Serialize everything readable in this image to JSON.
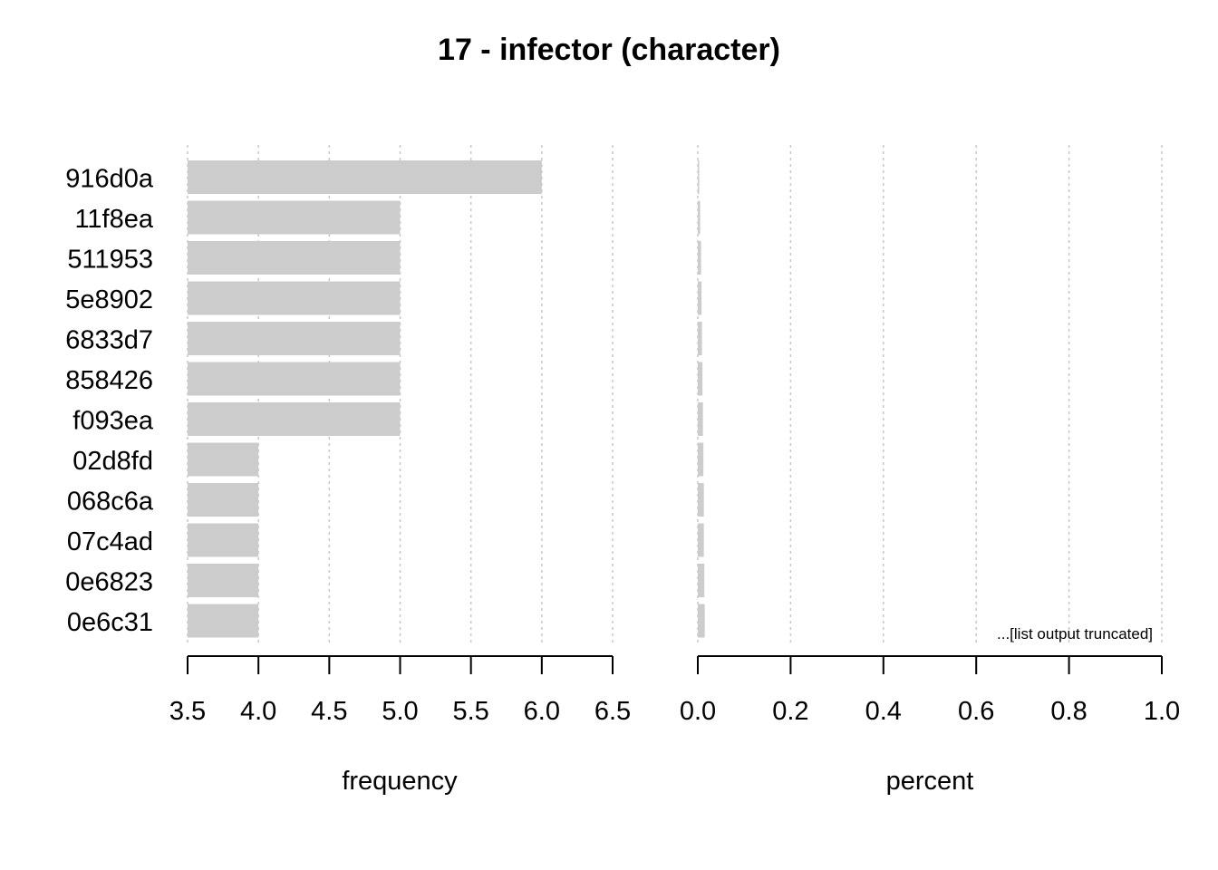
{
  "title": "17 - infector (character)",
  "note": "...[list output truncated]",
  "colors": {
    "bar": "#cccccc",
    "grid": "#c8c8c8",
    "axis": "#000000",
    "text": "#000000"
  },
  "chart_data": [
    {
      "type": "bar",
      "orientation": "horizontal",
      "xlabel": "frequency",
      "xlim": [
        3.5,
        6.5
      ],
      "xticks": [
        "3.5",
        "4.0",
        "4.5",
        "5.0",
        "5.5",
        "6.0",
        "6.5"
      ],
      "grid": true,
      "categories": [
        "916d0a",
        "11f8ea",
        "511953",
        "5e8902",
        "6833d7",
        "858426",
        "f093ea",
        "02d8fd",
        "068c6a",
        "07c4ad",
        "0e6823",
        "0e6c31"
      ],
      "values": [
        6,
        5,
        5,
        5,
        5,
        5,
        5,
        4,
        4,
        4,
        4,
        4
      ]
    },
    {
      "type": "bar",
      "orientation": "horizontal",
      "xlabel": "percent",
      "xlim": [
        0.0,
        1.0
      ],
      "xticks": [
        "0.0",
        "0.2",
        "0.4",
        "0.6",
        "0.8",
        "1.0"
      ],
      "grid": true,
      "categories": [
        "916d0a",
        "11f8ea",
        "511953",
        "5e8902",
        "6833d7",
        "858426",
        "f093ea",
        "02d8fd",
        "068c6a",
        "07c4ad",
        "0e6823",
        "0e6c31"
      ],
      "values": [
        0.001,
        0.005,
        0.007,
        0.008,
        0.009,
        0.01,
        0.011,
        0.012,
        0.013,
        0.013,
        0.014,
        0.015
      ]
    }
  ]
}
